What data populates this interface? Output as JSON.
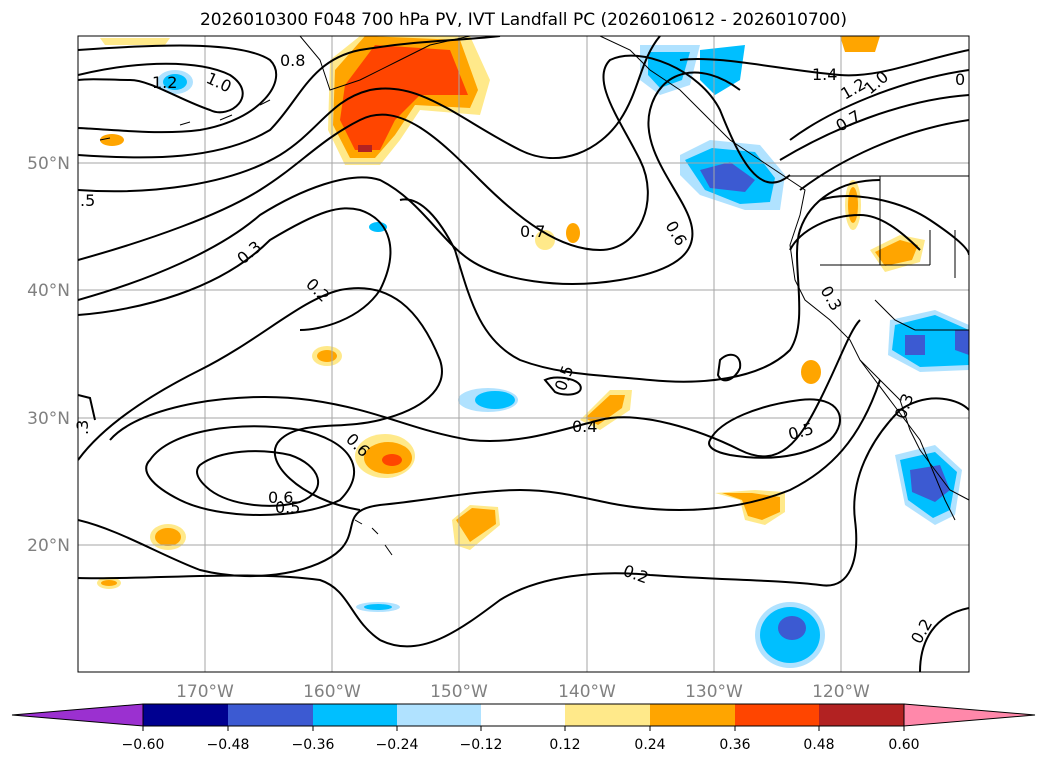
{
  "title": "2026010300 F048 700 hPa PV, IVT Landfall PC (2026010612 - 2026010700)",
  "map": {
    "lon_range": [
      -180,
      -110
    ],
    "lat_range": [
      10,
      60
    ],
    "lon_ticks": [
      "170°W",
      "160°W",
      "150°W",
      "140°W",
      "130°W",
      "120°W"
    ],
    "lat_ticks": [
      "50°N",
      "40°N",
      "30°N",
      "20°N"
    ],
    "contour_labels": [
      "1.2",
      "1.0",
      "0.8",
      "1.4",
      "1.2",
      "1.0",
      "0",
      ".5",
      "0.3",
      "0.2",
      "0.7",
      "0.6",
      "0.7",
      "0.5",
      "0.4",
      "0.6",
      "0.5",
      "0.5",
      "0.2",
      "0.2",
      "0.3",
      "0.6",
      "0.3",
      ".3"
    ]
  },
  "colorbar": {
    "colors": [
      "#9b30d0",
      "#000090",
      "#3c5ad2",
      "#00bfff",
      "#b0e2ff",
      "#ffffff",
      "#ffe98a",
      "#ffa500",
      "#ff4500",
      "#b22222",
      "#ff88aa"
    ],
    "tick_labels": [
      "−0.60",
      "−0.48",
      "−0.36",
      "−0.24",
      "−0.12",
      "0.12",
      "0.24",
      "0.36",
      "0.48",
      "0.60"
    ]
  }
}
